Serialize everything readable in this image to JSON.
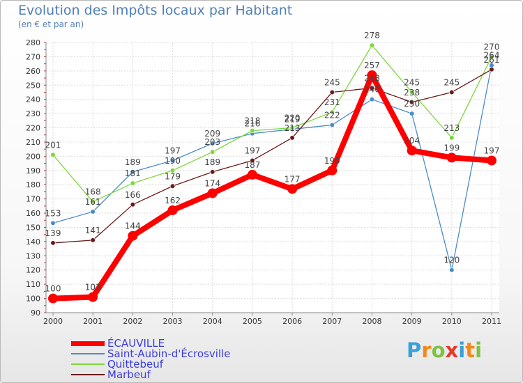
{
  "page": {
    "title": "Evolution des Impôts locaux par Habitant",
    "subtitle": "(en € et par an)",
    "brand": {
      "letters": [
        "P",
        "r",
        "o",
        "x",
        "i",
        "t",
        "i"
      ],
      "colors": [
        "#3b9fd8",
        "#f08a1c",
        "#7dc243",
        "#e8392b",
        "#3b9fd8",
        "#f08a1c",
        "#7dc243"
      ]
    }
  },
  "chart_data": {
    "type": "line",
    "title": "Evolution des Impôts locaux par Habitant",
    "subtitle": "(en € et par an)",
    "xlabel": "",
    "ylabel": "",
    "ylim": [
      90,
      280
    ],
    "ytick_step": 10,
    "grid": true,
    "legend_position": "bottom-left",
    "x": [
      "2000",
      "2001",
      "2002",
      "2003",
      "2004",
      "2005",
      "2006",
      "2007",
      "2008",
      "2009",
      "2010",
      "2011"
    ],
    "series": [
      {
        "name": "ÉCAUVILLE",
        "color": "#ff0000",
        "emphasis": true,
        "values": [
          100,
          101,
          144,
          162,
          174,
          187,
          177,
          190,
          257,
          204,
          199,
          197
        ],
        "labels": [
          "100",
          "101",
          "144",
          "162",
          "174",
          "187",
          "177",
          "190",
          "257",
          "204",
          "199",
          "197"
        ]
      },
      {
        "name": "Saint-Aubin-d'Écrosville",
        "color": "#4a8cc9",
        "values": [
          153,
          161,
          189,
          197,
          209,
          216,
          219,
          222,
          240,
          230,
          120,
          264
        ],
        "labels": [
          "153",
          "161",
          "189",
          "197",
          "209",
          "216",
          "219",
          "222",
          "240",
          "230",
          "120",
          "264"
        ]
      },
      {
        "name": "Quittebeuf",
        "color": "#7ed63a",
        "values": [
          201,
          168,
          181,
          190,
          203,
          218,
          220,
          231,
          278,
          245,
          213,
          270
        ],
        "labels": [
          "201",
          "168",
          "181",
          "190",
          "203",
          "218",
          "220",
          "231",
          "278",
          "245",
          "213",
          "270"
        ]
      },
      {
        "name": "Marbeuf",
        "color": "#6b1a1a",
        "values": [
          139,
          141,
          166,
          179,
          189,
          197,
          213,
          245,
          248,
          238,
          245,
          261
        ],
        "labels": [
          "139",
          "141",
          "166",
          "179",
          "189",
          "197",
          "213",
          "245",
          "248",
          "238",
          "245",
          "261"
        ]
      }
    ]
  }
}
